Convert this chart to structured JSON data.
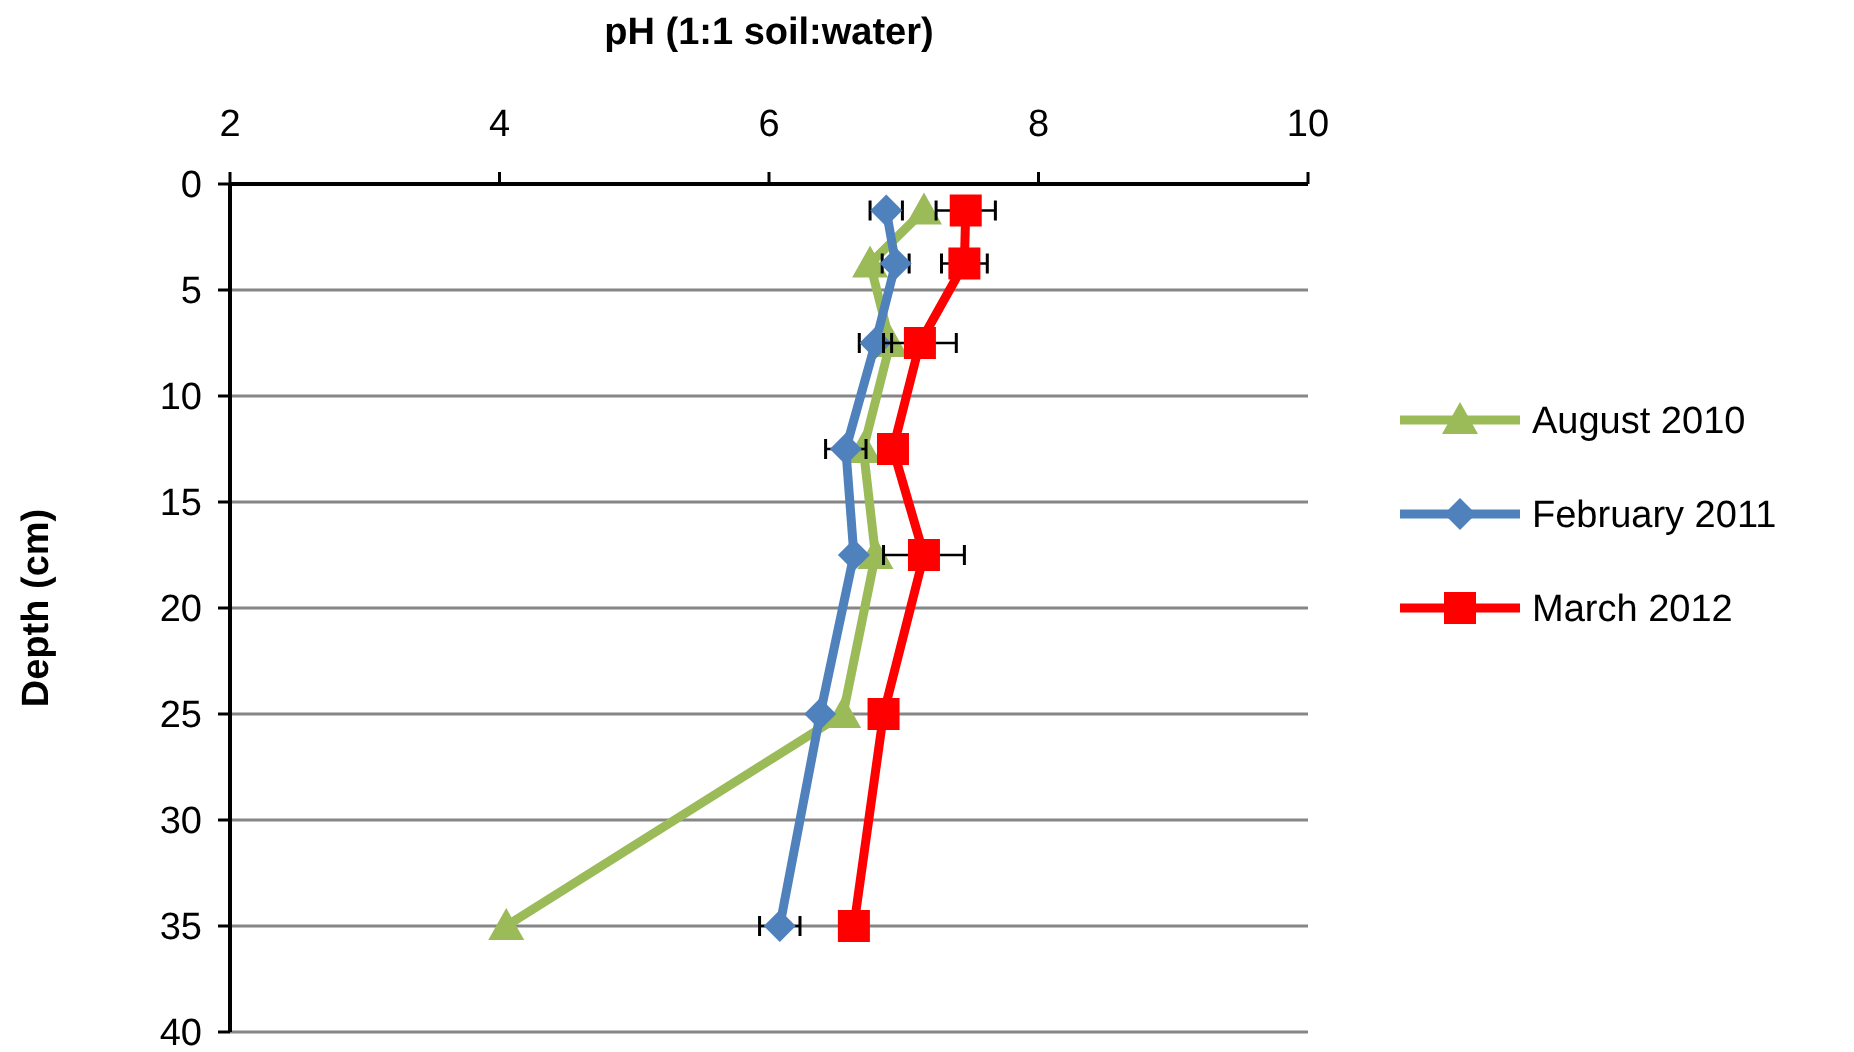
{
  "chart_data": {
    "type": "line",
    "xlabel": "pH (1:1 soil:water)",
    "ylabel": "Depth (cm)",
    "xlim": [
      2,
      10
    ],
    "xticks": [
      2,
      4,
      6,
      8,
      10
    ],
    "ylim": [
      40,
      0
    ],
    "yticks": [
      0,
      5,
      10,
      15,
      20,
      25,
      30,
      35,
      40
    ],
    "grid": "y",
    "legend": "right",
    "series": [
      {
        "name": "August 2010",
        "color": "#9bbb59",
        "marker": "triangle",
        "x": [
          7.15,
          6.75,
          6.9,
          6.7,
          6.79,
          6.55,
          4.05
        ],
        "values": [
          1.25,
          3.75,
          7.5,
          12.5,
          17.5,
          25,
          35
        ]
      },
      {
        "name": "February 2011",
        "color": "#4f81bd",
        "marker": "diamond",
        "x": [
          6.87,
          6.94,
          6.79,
          6.57,
          6.63,
          6.38,
          6.08
        ],
        "values": [
          1.25,
          3.75,
          7.5,
          12.5,
          17.5,
          25,
          35
        ],
        "xerrors": [
          0.12,
          0.1,
          0.12,
          0.15,
          null,
          null,
          0.15
        ]
      },
      {
        "name": "March 2012",
        "color": "#ff0000",
        "marker": "square",
        "x": [
          7.46,
          7.45,
          7.12,
          6.92,
          7.15,
          6.85,
          6.63
        ],
        "values": [
          1.25,
          3.75,
          7.5,
          12.5,
          17.5,
          25,
          35
        ],
        "xerrors": [
          0.22,
          0.17,
          0.27,
          null,
          0.3,
          null,
          null
        ]
      }
    ]
  }
}
